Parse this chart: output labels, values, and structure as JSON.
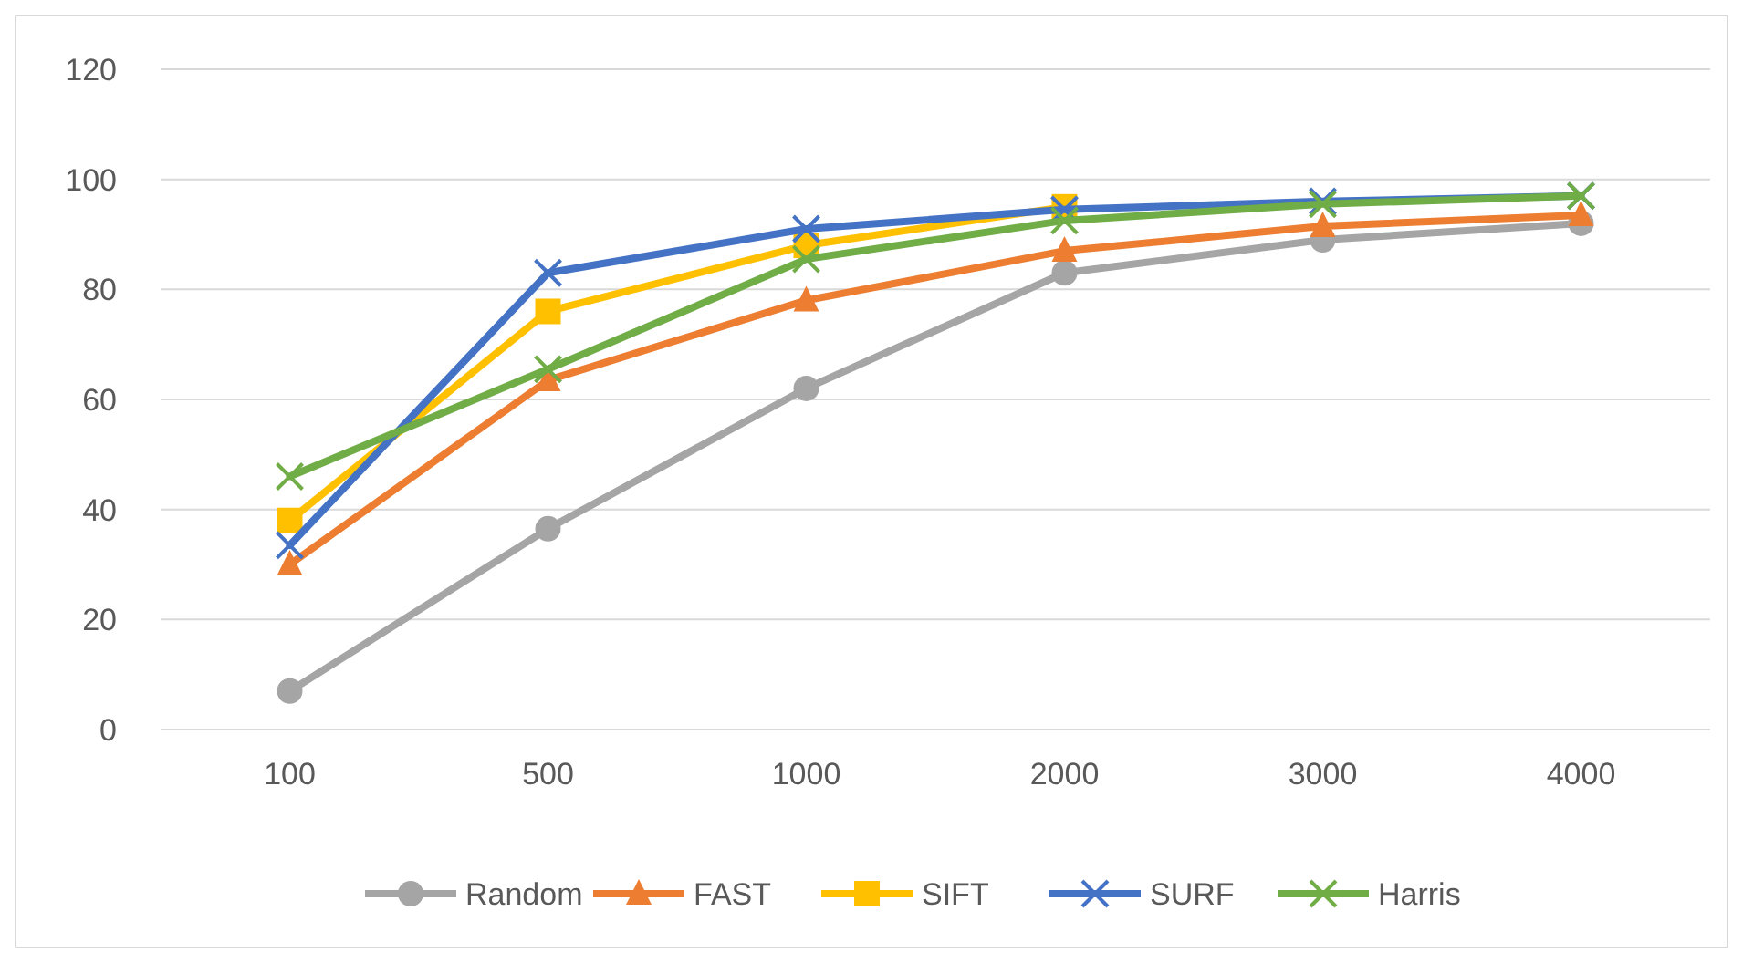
{
  "chart_data": {
    "type": "line",
    "categories": [
      "100",
      "500",
      "1000",
      "2000",
      "3000",
      "4000"
    ],
    "ylim": [
      0,
      120
    ],
    "yticks": [
      0,
      20,
      40,
      60,
      80,
      100,
      120
    ],
    "grid": "y",
    "legend": "bottom",
    "series": [
      {
        "name": "Random",
        "color": "#a5a5a5",
        "marker": "circle",
        "values": [
          7,
          36.5,
          62,
          83,
          89,
          92
        ]
      },
      {
        "name": "FAST",
        "color": "#ed7d31",
        "marker": "triangle",
        "values": [
          30,
          63.5,
          78,
          87,
          91.5,
          93.5
        ]
      },
      {
        "name": "SIFT",
        "color": "#ffc000",
        "marker": "square",
        "values": [
          38,
          76,
          88,
          95,
          null,
          null
        ]
      },
      {
        "name": "SURF",
        "color": "#4472c4",
        "marker": "cross",
        "values": [
          33.5,
          83,
          91,
          94.5,
          96,
          97
        ]
      },
      {
        "name": "Harris",
        "color": "#70ad47",
        "marker": "cross",
        "values": [
          46,
          65.5,
          85.5,
          92.5,
          95.5,
          97
        ]
      }
    ]
  }
}
